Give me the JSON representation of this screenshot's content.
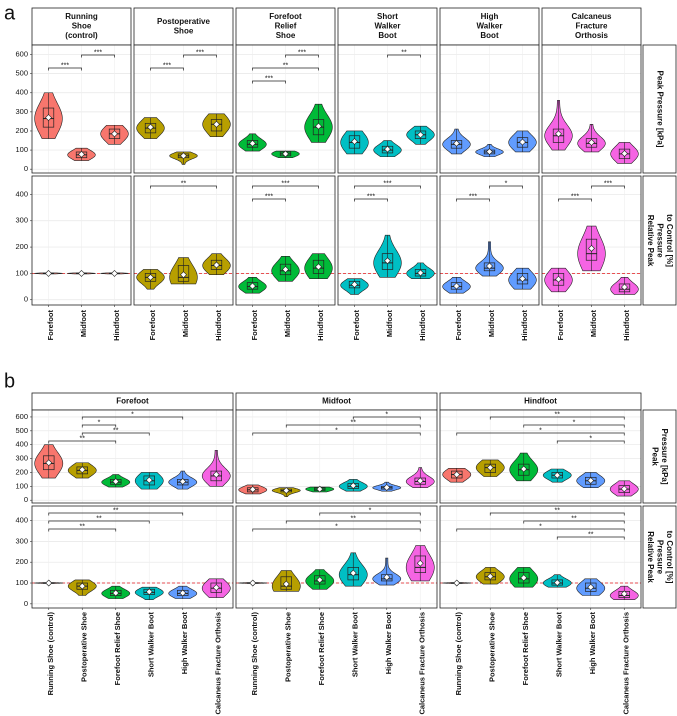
{
  "chart_data": {
    "type": "violin",
    "shoes": [
      "Running Shoe (control)",
      "Postoperative Shoe",
      "Forefoot Relief Shoe",
      "Short Walker Boot",
      "High Walker Boot",
      "Calcaneus Fracture Orthosis"
    ],
    "regions": [
      "Forefoot",
      "Midfoot",
      "Hindfoot"
    ],
    "colors": [
      "#f8766d",
      "#b79f00",
      "#00ba38",
      "#00bfc4",
      "#619cff",
      "#f564e3"
    ],
    "measures": [
      {
        "values": [
          [
            {
              "min": 160,
              "q1": 220,
              "median": 265,
              "q3": 320,
              "max": 400,
              "mean": 270
            },
            {
              "min": 45,
              "q1": 60,
              "median": 75,
              "q3": 90,
              "max": 110,
              "mean": 78
            },
            {
              "min": 130,
              "q1": 160,
              "median": 185,
              "q3": 210,
              "max": 230,
              "mean": 185
            }
          ],
          [
            {
              "min": 160,
              "q1": 190,
              "median": 215,
              "q3": 240,
              "max": 270,
              "mean": 220
            },
            {
              "min": 25,
              "q1": 60,
              "median": 70,
              "q3": 80,
              "max": 90,
              "mean": 70
            },
            {
              "min": 170,
              "q1": 200,
              "median": 235,
              "q3": 260,
              "max": 290,
              "mean": 235
            }
          ],
          [
            {
              "min": 95,
              "q1": 115,
              "median": 130,
              "q3": 150,
              "max": 185,
              "mean": 135
            },
            {
              "min": 60,
              "q1": 70,
              "median": 80,
              "q3": 90,
              "max": 95,
              "mean": 80
            },
            {
              "min": 140,
              "q1": 180,
              "median": 220,
              "q3": 260,
              "max": 340,
              "mean": 225
            }
          ],
          [
            {
              "min": 80,
              "q1": 110,
              "median": 140,
              "q3": 175,
              "max": 200,
              "mean": 145
            },
            {
              "min": 65,
              "q1": 85,
              "median": 100,
              "q3": 120,
              "max": 150,
              "mean": 105
            },
            {
              "min": 130,
              "q1": 160,
              "median": 180,
              "q3": 200,
              "max": 225,
              "mean": 180
            }
          ],
          [
            {
              "min": 80,
              "q1": 110,
              "median": 130,
              "q3": 150,
              "max": 210,
              "mean": 135
            },
            {
              "min": 65,
              "q1": 80,
              "median": 90,
              "q3": 100,
              "max": 130,
              "mean": 92
            },
            {
              "min": 90,
              "q1": 115,
              "median": 140,
              "q3": 165,
              "max": 200,
              "mean": 142
            }
          ],
          [
            {
              "min": 100,
              "q1": 140,
              "median": 175,
              "q3": 210,
              "max": 360,
              "mean": 185
            },
            {
              "min": 90,
              "q1": 115,
              "median": 135,
              "q3": 160,
              "max": 235,
              "mean": 140
            },
            {
              "min": 30,
              "q1": 55,
              "median": 80,
              "q3": 105,
              "max": 140,
              "mean": 82
            }
          ]
        ]
      },
      {
        "reference": 100,
        "values": [
          [
            {
              "min": 98,
              "q1": 99,
              "median": 100,
              "q3": 101,
              "max": 102,
              "mean": 100
            },
            {
              "min": 98,
              "q1": 99,
              "median": 100,
              "q3": 101,
              "max": 102,
              "mean": 100
            },
            {
              "min": 98,
              "q1": 99,
              "median": 100,
              "q3": 101,
              "max": 102,
              "mean": 100
            }
          ],
          [
            {
              "min": 40,
              "q1": 70,
              "median": 85,
              "q3": 100,
              "max": 115,
              "mean": 85
            },
            {
              "min": 60,
              "q1": 70,
              "median": 85,
              "q3": 130,
              "max": 160,
              "mean": 95
            },
            {
              "min": 95,
              "q1": 115,
              "median": 130,
              "q3": 150,
              "max": 175,
              "mean": 132
            }
          ],
          [
            {
              "min": 25,
              "q1": 40,
              "median": 50,
              "q3": 65,
              "max": 85,
              "mean": 52
            },
            {
              "min": 70,
              "q1": 95,
              "median": 110,
              "q3": 135,
              "max": 165,
              "mean": 115
            },
            {
              "min": 80,
              "q1": 100,
              "median": 120,
              "q3": 150,
              "max": 175,
              "mean": 125
            }
          ],
          [
            {
              "min": 20,
              "q1": 45,
              "median": 55,
              "q3": 70,
              "max": 80,
              "mean": 58
            },
            {
              "min": 85,
              "q1": 115,
              "median": 140,
              "q3": 175,
              "max": 245,
              "mean": 148
            },
            {
              "min": 80,
              "q1": 90,
              "median": 100,
              "q3": 115,
              "max": 140,
              "mean": 102
            }
          ],
          [
            {
              "min": 25,
              "q1": 40,
              "median": 50,
              "q3": 65,
              "max": 85,
              "mean": 52
            },
            {
              "min": 90,
              "q1": 110,
              "median": 120,
              "q3": 140,
              "max": 220,
              "mean": 128
            },
            {
              "min": 40,
              "q1": 60,
              "median": 75,
              "q3": 100,
              "max": 120,
              "mean": 80
            }
          ],
          [
            {
              "min": 30,
              "q1": 55,
              "median": 75,
              "q3": 100,
              "max": 120,
              "mean": 78
            },
            {
              "min": 110,
              "q1": 150,
              "median": 175,
              "q3": 230,
              "max": 280,
              "mean": 195
            },
            {
              "min": 20,
              "q1": 30,
              "median": 40,
              "q3": 60,
              "max": 85,
              "mean": 48
            }
          ]
        ]
      }
    ],
    "panels": [
      {
        "label": "a",
        "facet_titles": [
          [
            "Running",
            "Shoe",
            "(control)"
          ],
          [
            "Postoperative",
            "Shoe"
          ],
          [
            "Forefoot",
            "Relief",
            "Shoe"
          ],
          [
            "Short",
            "Walker",
            "Boot"
          ],
          [
            "High",
            "Walker",
            "Boot"
          ],
          [
            "Calcaneus",
            "Fracture",
            "Orthosis"
          ]
        ],
        "rows": [
          {
            "strip": [
              "Peak Pressure [kPa]"
            ],
            "ylim": [
              -20,
              650
            ],
            "yticks": [
              0,
              100,
              200,
              300,
              400,
              500,
              600
            ],
            "brackets": [
              {
                "facet": 0,
                "from": 1,
                "to": 2,
                "label": "***"
              },
              {
                "facet": 0,
                "from": 0,
                "to": 1,
                "label": "***"
              },
              {
                "facet": 1,
                "from": 1,
                "to": 2,
                "label": "***"
              },
              {
                "facet": 1,
                "from": 0,
                "to": 1,
                "label": "***"
              },
              {
                "facet": 2,
                "from": 1,
                "to": 2,
                "label": "***"
              },
              {
                "facet": 2,
                "from": 0,
                "to": 2,
                "label": "**"
              },
              {
                "facet": 2,
                "from": 0,
                "to": 1,
                "label": "***"
              },
              {
                "facet": 3,
                "from": 1,
                "to": 2,
                "label": "**"
              }
            ]
          },
          {
            "strip": [
              "Relative Peak",
              "Pressure",
              "to Control [%]"
            ],
            "ylim": [
              -20,
              470
            ],
            "yticks": [
              0,
              100,
              200,
              300,
              400
            ],
            "brackets": [
              {
                "facet": 1,
                "from": 0,
                "to": 2,
                "label": "**"
              },
              {
                "facet": 2,
                "from": 0,
                "to": 2,
                "label": "***"
              },
              {
                "facet": 2,
                "from": 0,
                "to": 1,
                "label": "***"
              },
              {
                "facet": 3,
                "from": 0,
                "to": 2,
                "label": "***"
              },
              {
                "facet": 3,
                "from": 0,
                "to": 1,
                "label": "***"
              },
              {
                "facet": 4,
                "from": 1,
                "to": 2,
                "label": "*"
              },
              {
                "facet": 4,
                "from": 0,
                "to": 1,
                "label": "***"
              },
              {
                "facet": 5,
                "from": 1,
                "to": 2,
                "label": "***"
              },
              {
                "facet": 5,
                "from": 0,
                "to": 1,
                "label": "***"
              }
            ]
          }
        ]
      },
      {
        "label": "b",
        "rows": [
          {
            "strip": [
              "Peak",
              "Pressure [kPa]"
            ],
            "ylim": [
              -20,
              650
            ],
            "yticks": [
              0,
              100,
              200,
              300,
              400,
              500,
              600
            ],
            "brackets": [
              {
                "facet": 0,
                "from": 1,
                "to": 4,
                "label": "*"
              },
              {
                "facet": 0,
                "from": 1,
                "to": 2,
                "label": "*"
              },
              {
                "facet": 0,
                "from": 1,
                "to": 3,
                "label": "**"
              },
              {
                "facet": 0,
                "from": 0,
                "to": 2,
                "label": "**"
              },
              {
                "facet": 1,
                "from": 3,
                "to": 5,
                "label": "*"
              },
              {
                "facet": 1,
                "from": 1,
                "to": 5,
                "label": "**"
              },
              {
                "facet": 1,
                "from": 0,
                "to": 5,
                "label": "*"
              },
              {
                "facet": 2,
                "from": 1,
                "to": 5,
                "label": "**"
              },
              {
                "facet": 2,
                "from": 2,
                "to": 5,
                "label": "*"
              },
              {
                "facet": 2,
                "from": 0,
                "to": 5,
                "label": "*"
              },
              {
                "facet": 2,
                "from": 3,
                "to": 5,
                "label": "*"
              }
            ]
          },
          {
            "strip": [
              "Relative Peak",
              "Pressure",
              "to Control [%]"
            ],
            "ylim": [
              -20,
              470
            ],
            "yticks": [
              0,
              100,
              200,
              300,
              400
            ],
            "brackets": [
              {
                "facet": 0,
                "from": 0,
                "to": 4,
                "label": "**"
              },
              {
                "facet": 0,
                "from": 0,
                "to": 3,
                "label": "**"
              },
              {
                "facet": 0,
                "from": 0,
                "to": 2,
                "label": "**"
              },
              {
                "facet": 1,
                "from": 2,
                "to": 5,
                "label": "*"
              },
              {
                "facet": 1,
                "from": 1,
                "to": 5,
                "label": "**"
              },
              {
                "facet": 1,
                "from": 0,
                "to": 5,
                "label": "*"
              },
              {
                "facet": 2,
                "from": 1,
                "to": 5,
                "label": "**"
              },
              {
                "facet": 2,
                "from": 2,
                "to": 5,
                "label": "**"
              },
              {
                "facet": 2,
                "from": 0,
                "to": 5,
                "label": "*"
              },
              {
                "facet": 2,
                "from": 3,
                "to": 5,
                "label": "**"
              }
            ]
          }
        ]
      }
    ]
  }
}
